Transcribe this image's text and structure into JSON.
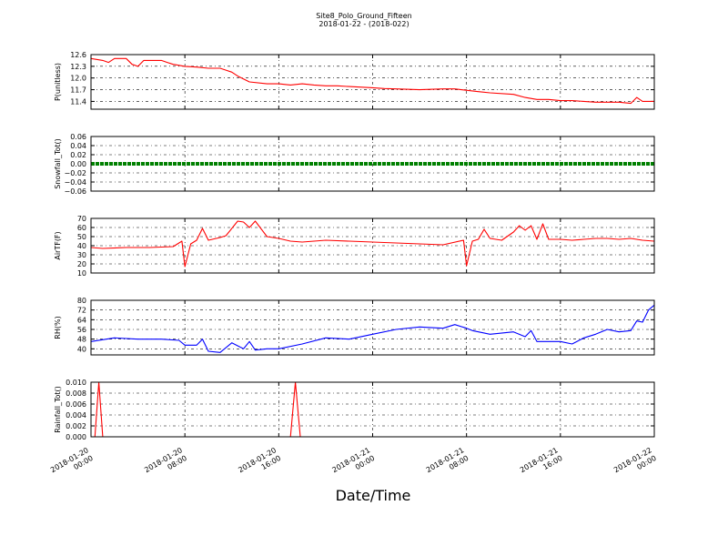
{
  "figure": {
    "title": "Site8_Polo_Ground_Fifteen",
    "subtitle": "2018-01-22 - (2018-022)",
    "xlabel": "Date/Time"
  },
  "chart_data": {
    "type": "line",
    "x_range": [
      "2018-01-20 00:00",
      "2018-01-22 00:00"
    ],
    "x_ticks": [
      {
        "value": "2018-01-20 00:00",
        "line1": "2018-01-20",
        "line2": "00:00"
      },
      {
        "value": "2018-01-20 08:00",
        "line1": "2018-01-20",
        "line2": "08:00"
      },
      {
        "value": "2018-01-20 16:00",
        "line1": "2018-01-20",
        "line2": "16:00"
      },
      {
        "value": "2018-01-21 00:00",
        "line1": "2018-01-21",
        "line2": "00:00"
      },
      {
        "value": "2018-01-21 08:00",
        "line1": "2018-01-21",
        "line2": "08:00"
      },
      {
        "value": "2018-01-21 16:00",
        "line1": "2018-01-21",
        "line2": "16:00"
      },
      {
        "value": "2018-01-22 00:00",
        "line1": "2018-01-22",
        "line2": "00:00"
      }
    ],
    "grid": true,
    "panels": [
      {
        "ylabel": "P(unitless)",
        "ylim": [
          11.2,
          12.6
        ],
        "yticks": [
          11.4,
          11.7,
          12.0,
          12.3,
          12.6
        ],
        "ytick_labels": [
          "11.4",
          "11.7",
          "12.0",
          "12.3",
          "12.6"
        ],
        "color": "#ff0000",
        "marker": "line",
        "x": [
          "2018-01-20 00:00",
          "2018-01-20 01:00",
          "2018-01-20 01:30",
          "2018-01-20 02:00",
          "2018-01-20 03:00",
          "2018-01-20 03:30",
          "2018-01-20 04:00",
          "2018-01-20 04:30",
          "2018-01-20 06:00",
          "2018-01-20 06:30",
          "2018-01-20 07:00",
          "2018-01-20 08:00",
          "2018-01-20 09:00",
          "2018-01-20 10:00",
          "2018-01-20 11:00",
          "2018-01-20 11:30",
          "2018-01-20 12:00",
          "2018-01-20 12:30",
          "2018-01-20 13:30",
          "2018-01-20 15:00",
          "2018-01-20 16:00",
          "2018-01-20 17:00",
          "2018-01-20 18:00",
          "2018-01-20 19:00",
          "2018-01-20 20:00",
          "2018-01-20 21:00",
          "2018-01-20 22:00",
          "2018-01-21 00:00",
          "2018-01-21 01:00",
          "2018-01-21 02:00",
          "2018-01-21 04:00",
          "2018-01-21 06:00",
          "2018-01-21 07:00",
          "2018-01-21 09:00",
          "2018-01-21 10:00",
          "2018-01-21 12:00",
          "2018-01-21 13:00",
          "2018-01-21 14:00",
          "2018-01-21 15:00",
          "2018-01-21 16:00",
          "2018-01-21 17:00",
          "2018-01-21 18:00",
          "2018-01-21 19:00",
          "2018-01-21 20:00",
          "2018-01-21 21:00",
          "2018-01-21 22:00",
          "2018-01-21 22:30",
          "2018-01-21 23:00",
          "2018-01-22 00:00"
        ],
        "values": [
          12.5,
          12.45,
          12.4,
          12.5,
          12.5,
          12.35,
          12.3,
          12.45,
          12.45,
          12.4,
          12.35,
          12.3,
          12.28,
          12.25,
          12.25,
          12.2,
          12.15,
          12.05,
          11.9,
          11.85,
          11.85,
          11.82,
          11.85,
          11.82,
          11.8,
          11.8,
          11.78,
          11.75,
          11.73,
          11.72,
          11.7,
          11.72,
          11.72,
          11.65,
          11.62,
          11.58,
          11.5,
          11.45,
          11.45,
          11.42,
          11.42,
          11.4,
          11.38,
          11.38,
          11.38,
          11.35,
          11.5,
          11.4,
          11.4
        ]
      },
      {
        "ylabel": "Snowfall_Tot()",
        "ylim": [
          -0.06,
          0.06
        ],
        "yticks": [
          -0.06,
          -0.04,
          -0.02,
          0.0,
          0.02,
          0.04,
          0.06
        ],
        "ytick_labels": [
          "−0.06",
          "−0.04",
          "−0.02",
          "0.00",
          "0.02",
          "0.04",
          "0.06"
        ],
        "color": "#008000",
        "marker": "dots",
        "x": [
          "2018-01-20 00:00",
          "2018-01-22 00:00"
        ],
        "values": [
          0,
          0
        ]
      },
      {
        "ylabel": "AirTF(F)",
        "ylim": [
          10,
          70
        ],
        "yticks": [
          10,
          20,
          30,
          40,
          50,
          60,
          70
        ],
        "ytick_labels": [
          "10",
          "20",
          "30",
          "40",
          "50",
          "60",
          "70"
        ],
        "color": "#ff0000",
        "marker": "line",
        "x": [
          "2018-01-20 00:00",
          "2018-01-20 01:00",
          "2018-01-20 03:00",
          "2018-01-20 05:00",
          "2018-01-20 07:00",
          "2018-01-20 07:45",
          "2018-01-20 08:00",
          "2018-01-20 08:30",
          "2018-01-20 09:00",
          "2018-01-20 09:30",
          "2018-01-20 10:00",
          "2018-01-20 11:00",
          "2018-01-20 11:30",
          "2018-01-20 12:30",
          "2018-01-20 13:00",
          "2018-01-20 13:30",
          "2018-01-20 14:00",
          "2018-01-20 15:00",
          "2018-01-20 15:30",
          "2018-01-20 16:00",
          "2018-01-20 17:00",
          "2018-01-20 18:00",
          "2018-01-20 20:00",
          "2018-01-20 22:00",
          "2018-01-21 00:00",
          "2018-01-21 02:00",
          "2018-01-21 04:00",
          "2018-01-21 06:00",
          "2018-01-21 07:45",
          "2018-01-21 08:00",
          "2018-01-21 08:30",
          "2018-01-21 09:00",
          "2018-01-21 09:30",
          "2018-01-21 10:00",
          "2018-01-21 11:00",
          "2018-01-21 12:00",
          "2018-01-21 12:30",
          "2018-01-21 13:00",
          "2018-01-21 13:30",
          "2018-01-21 14:00",
          "2018-01-21 14:30",
          "2018-01-21 15:00",
          "2018-01-21 16:00",
          "2018-01-21 17:00",
          "2018-01-21 18:00",
          "2018-01-21 19:00",
          "2018-01-21 20:00",
          "2018-01-21 21:00",
          "2018-01-21 22:00",
          "2018-01-21 23:00",
          "2018-01-22 00:00"
        ],
        "values": [
          38,
          37,
          38,
          38,
          39,
          45,
          17,
          42,
          46,
          59,
          46,
          49,
          51,
          67,
          66,
          60,
          67,
          50,
          49,
          48,
          45,
          44,
          46,
          45,
          44,
          43,
          42,
          41,
          46,
          18,
          45,
          47,
          58,
          48,
          46,
          55,
          62,
          57,
          62,
          47,
          64,
          47,
          47,
          46,
          47,
          48,
          48,
          47,
          48,
          46,
          45
        ]
      },
      {
        "ylabel": "RH(%)",
        "ylim": [
          35,
          80
        ],
        "yticks": [
          40,
          48,
          56,
          64,
          72,
          80
        ],
        "ytick_labels": [
          "40",
          "48",
          "56",
          "64",
          "72",
          "80"
        ],
        "color": "#0000ff",
        "marker": "line",
        "x": [
          "2018-01-20 00:00",
          "2018-01-20 02:00",
          "2018-01-20 04:00",
          "2018-01-20 06:00",
          "2018-01-20 07:30",
          "2018-01-20 08:00",
          "2018-01-20 09:00",
          "2018-01-20 09:30",
          "2018-01-20 10:00",
          "2018-01-20 11:00",
          "2018-01-20 12:00",
          "2018-01-20 13:00",
          "2018-01-20 13:30",
          "2018-01-20 14:00",
          "2018-01-20 15:00",
          "2018-01-20 16:00",
          "2018-01-20 18:00",
          "2018-01-20 20:00",
          "2018-01-20 22:00",
          "2018-01-21 00:00",
          "2018-01-21 02:00",
          "2018-01-21 04:00",
          "2018-01-21 06:00",
          "2018-01-21 07:00",
          "2018-01-21 08:00",
          "2018-01-21 08:30",
          "2018-01-21 10:00",
          "2018-01-21 12:00",
          "2018-01-21 13:00",
          "2018-01-21 13:30",
          "2018-01-21 14:00",
          "2018-01-21 16:00",
          "2018-01-21 17:00",
          "2018-01-21 18:00",
          "2018-01-21 19:00",
          "2018-01-21 20:00",
          "2018-01-21 21:00",
          "2018-01-21 22:00",
          "2018-01-21 22:30",
          "2018-01-21 23:00",
          "2018-01-21 23:30",
          "2018-01-22 00:00"
        ],
        "values": [
          46,
          49,
          48,
          48,
          47,
          43,
          43,
          48,
          38,
          37,
          45,
          40,
          46,
          39,
          40,
          40,
          44,
          49,
          48,
          52,
          56,
          58,
          57,
          60,
          57,
          55,
          52,
          54,
          50,
          55,
          46,
          46,
          44,
          49,
          52,
          56,
          54,
          55,
          63,
          62,
          72,
          76
        ]
      },
      {
        "ylabel": "Rainfall_Tot()",
        "ylim": [
          0.0,
          0.01
        ],
        "yticks": [
          0.0,
          0.002,
          0.004,
          0.006,
          0.008,
          0.01
        ],
        "ytick_labels": [
          "0.000",
          "0.002",
          "0.004",
          "0.006",
          "0.008",
          "0.010"
        ],
        "color": "#ff0000",
        "marker": "line",
        "x": [
          "2018-01-20 00:00",
          "2018-01-20 00:20",
          "2018-01-20 00:40",
          "2018-01-20 01:00",
          "2018-01-20 17:00",
          "2018-01-20 17:25",
          "2018-01-20 17:50",
          "2018-01-22 00:00"
        ],
        "values": [
          0,
          0,
          0.01,
          0,
          0,
          0.01,
          0,
          0
        ]
      }
    ]
  }
}
